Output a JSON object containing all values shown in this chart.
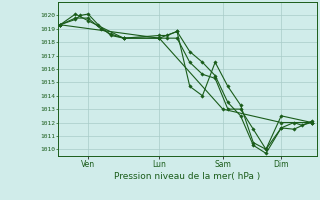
{
  "background_color": "#d0ecea",
  "grid_color": "#a8ccc8",
  "line_color": "#1a5c1a",
  "marker_color": "#1a5c1a",
  "title": "Pression niveau de la mer( hPa )",
  "ylim": [
    1009.5,
    1021.0
  ],
  "yticks": [
    1010,
    1011,
    1012,
    1013,
    1014,
    1015,
    1016,
    1017,
    1018,
    1019,
    1020
  ],
  "xtick_labels": [
    "Ven",
    "Lun",
    "Sam",
    "Dim"
  ],
  "xtick_positions": [
    0.12,
    0.4,
    0.65,
    0.88
  ],
  "xlim": [
    0.0,
    1.02
  ],
  "series": [
    [
      0.01,
      1019.3,
      0.07,
      1019.7,
      0.09,
      1020.0,
      0.12,
      1020.1,
      0.16,
      1019.3,
      0.21,
      1018.5,
      0.26,
      1018.3,
      0.4,
      1018.5,
      0.43,
      1018.5,
      0.47,
      1018.8,
      0.52,
      1017.3,
      0.57,
      1016.5,
      0.62,
      1015.5,
      0.67,
      1013.5,
      0.72,
      1012.5,
      0.77,
      1010.3,
      0.82,
      1009.7,
      0.88,
      1011.6,
      0.93,
      1012.0,
      0.96,
      1011.8,
      1.0,
      1012.0
    ],
    [
      0.01,
      1019.3,
      0.07,
      1019.8,
      0.12,
      1019.8,
      0.17,
      1019.0,
      0.21,
      1018.6,
      0.26,
      1018.3,
      0.4,
      1018.3,
      0.43,
      1018.3,
      0.47,
      1018.3,
      0.52,
      1016.5,
      0.57,
      1015.6,
      0.62,
      1015.3,
      0.67,
      1013.0,
      0.72,
      1013.0,
      0.77,
      1011.5,
      0.82,
      1010.0,
      0.88,
      1012.5,
      1.0,
      1012.0
    ],
    [
      0.01,
      1019.3,
      0.07,
      1020.1,
      0.12,
      1019.6,
      0.26,
      1018.3,
      0.4,
      1018.3,
      0.47,
      1018.8,
      0.52,
      1014.7,
      0.57,
      1014.0,
      0.62,
      1016.5,
      0.67,
      1014.7,
      0.72,
      1013.3,
      0.77,
      1010.5,
      0.82,
      1010.0,
      0.88,
      1011.6,
      0.93,
      1011.5,
      1.0,
      1012.1
    ],
    [
      0.01,
      1019.3,
      0.4,
      1018.3,
      0.65,
      1013.0,
      0.88,
      1012.0,
      1.0,
      1012.0
    ]
  ]
}
